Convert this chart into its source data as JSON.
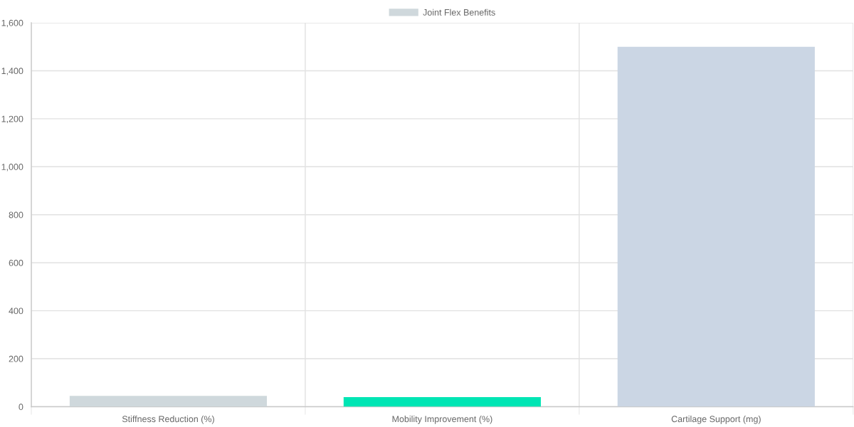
{
  "chart_data": {
    "type": "bar",
    "categories": [
      "Stiffness Reduction (%)",
      "Mobility Improvement (%)",
      "Cartilage Support (mg)"
    ],
    "series": [
      {
        "name": "Joint Flex Benefits",
        "colors": [
          "#cfd8dc",
          "#00e5b4",
          "#cbd6e4"
        ],
        "values": [
          45,
          40,
          1500
        ]
      }
    ],
    "ylim": [
      0,
      1600
    ],
    "yticks": [
      0,
      200,
      400,
      600,
      800,
      {
        "value": 1000,
        "label": "1,000"
      },
      {
        "value": 1200,
        "label": "1,200"
      },
      {
        "value": 1400,
        "label": "1,400"
      },
      {
        "value": 1600,
        "label": "1,600"
      }
    ],
    "grid": true,
    "legend": "top"
  }
}
